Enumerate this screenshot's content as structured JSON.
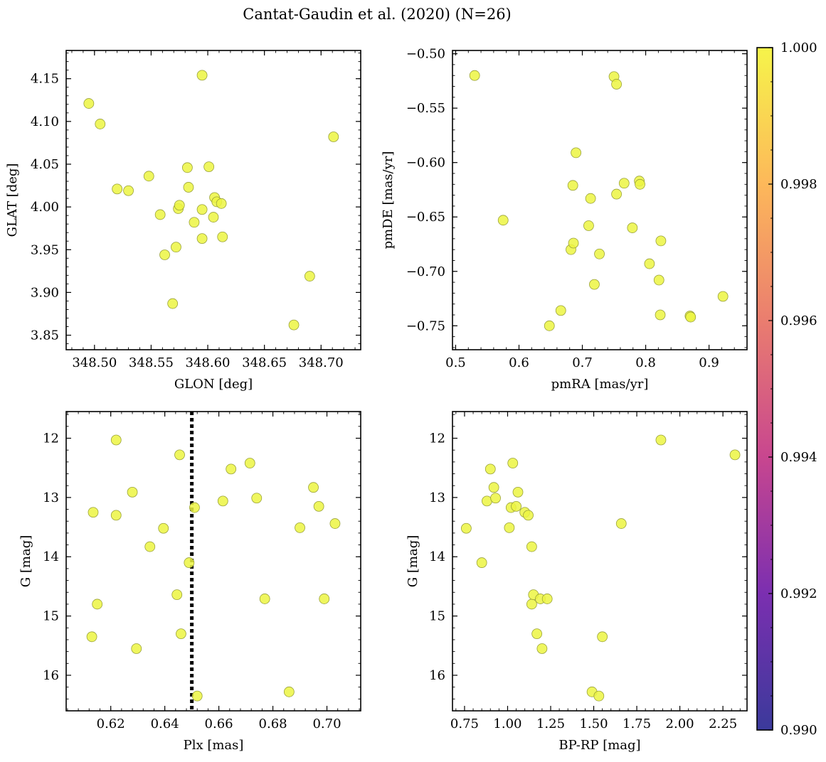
{
  "figure": {
    "title": "Cantat-Gaudin et al. (2020) (N=26)"
  },
  "chart_data": [
    {
      "type": "scatter",
      "xlabel": "GLON [deg]",
      "ylabel": "GLAT [deg]",
      "xlim": [
        348.475,
        348.735
      ],
      "ylim": [
        3.833,
        4.183
      ],
      "xticks": [
        348.5,
        348.55,
        348.6,
        348.65,
        348.7
      ],
      "xtick_labels": [
        "348.50",
        "348.55",
        "348.60",
        "348.65",
        "348.70"
      ],
      "yticks": [
        3.85,
        3.9,
        3.95,
        4.0,
        4.05,
        4.1,
        4.15
      ],
      "ytick_labels": [
        "3.85",
        "3.90",
        "3.95",
        "4.00",
        "4.05",
        "4.10",
        "4.15"
      ],
      "color_value": 1.0,
      "points": [
        {
          "x": 348.495,
          "y": 4.121
        },
        {
          "x": 348.505,
          "y": 4.097
        },
        {
          "x": 348.52,
          "y": 4.021
        },
        {
          "x": 348.53,
          "y": 4.019
        },
        {
          "x": 348.548,
          "y": 4.036
        },
        {
          "x": 348.558,
          "y": 3.991
        },
        {
          "x": 348.562,
          "y": 3.944
        },
        {
          "x": 348.569,
          "y": 3.887
        },
        {
          "x": 348.572,
          "y": 3.953
        },
        {
          "x": 348.574,
          "y": 3.998
        },
        {
          "x": 348.575,
          "y": 4.002
        },
        {
          "x": 348.582,
          "y": 4.046
        },
        {
          "x": 348.583,
          "y": 4.023
        },
        {
          "x": 348.588,
          "y": 3.982
        },
        {
          "x": 348.595,
          "y": 4.154
        },
        {
          "x": 348.595,
          "y": 3.997
        },
        {
          "x": 348.595,
          "y": 3.963
        },
        {
          "x": 348.601,
          "y": 4.047
        },
        {
          "x": 348.605,
          "y": 3.988
        },
        {
          "x": 348.606,
          "y": 4.011
        },
        {
          "x": 348.608,
          "y": 4.006
        },
        {
          "x": 348.612,
          "y": 4.004
        },
        {
          "x": 348.613,
          "y": 3.965
        },
        {
          "x": 348.676,
          "y": 3.862
        },
        {
          "x": 348.69,
          "y": 3.919
        },
        {
          "x": 348.711,
          "y": 4.082
        }
      ]
    },
    {
      "type": "scatter",
      "xlabel": "pmRA [mas/yr]",
      "ylabel": "pmDE [mas/yr]",
      "xlim": [
        0.495,
        0.96
      ],
      "ylim": [
        -0.772,
        -0.497
      ],
      "xticks": [
        0.5,
        0.6,
        0.7,
        0.8,
        0.9
      ],
      "xtick_labels": [
        "0.5",
        "0.6",
        "0.7",
        "0.8",
        "0.9"
      ],
      "yticks": [
        -0.75,
        -0.7,
        -0.65,
        -0.6,
        -0.55,
        -0.5
      ],
      "ytick_labels": [
        "−0.75",
        "−0.70",
        "−0.65",
        "−0.60",
        "−0.55",
        "−0.50"
      ],
      "color_value": 1.0,
      "points": [
        {
          "x": 0.53,
          "y": -0.52
        },
        {
          "x": 0.575,
          "y": -0.653
        },
        {
          "x": 0.648,
          "y": -0.75
        },
        {
          "x": 0.666,
          "y": -0.736
        },
        {
          "x": 0.682,
          "y": -0.68
        },
        {
          "x": 0.685,
          "y": -0.621
        },
        {
          "x": 0.686,
          "y": -0.674
        },
        {
          "x": 0.69,
          "y": -0.591
        },
        {
          "x": 0.71,
          "y": -0.658
        },
        {
          "x": 0.713,
          "y": -0.633
        },
        {
          "x": 0.719,
          "y": -0.712
        },
        {
          "x": 0.727,
          "y": -0.684
        },
        {
          "x": 0.75,
          "y": -0.521
        },
        {
          "x": 0.754,
          "y": -0.528
        },
        {
          "x": 0.754,
          "y": -0.629
        },
        {
          "x": 0.766,
          "y": -0.619
        },
        {
          "x": 0.779,
          "y": -0.66
        },
        {
          "x": 0.79,
          "y": -0.617
        },
        {
          "x": 0.791,
          "y": -0.62
        },
        {
          "x": 0.806,
          "y": -0.693
        },
        {
          "x": 0.821,
          "y": -0.708
        },
        {
          "x": 0.823,
          "y": -0.74
        },
        {
          "x": 0.824,
          "y": -0.672
        },
        {
          "x": 0.87,
          "y": -0.741
        },
        {
          "x": 0.871,
          "y": -0.742
        },
        {
          "x": 0.922,
          "y": -0.723
        }
      ]
    },
    {
      "type": "scatter",
      "xlabel": "Plx [mas]",
      "ylabel": "G [mag]",
      "xlim": [
        0.6035,
        0.7125
      ],
      "ylim": [
        16.6,
        11.55
      ],
      "xticks": [
        0.62,
        0.64,
        0.66,
        0.68,
        0.7
      ],
      "xtick_labels": [
        "0.62",
        "0.64",
        "0.66",
        "0.68",
        "0.70"
      ],
      "yticks": [
        12,
        13,
        14,
        15,
        16
      ],
      "ytick_labels": [
        "12",
        "13",
        "14",
        "15",
        "16"
      ],
      "vline_x": 0.65,
      "color_value": 1.0,
      "points": [
        {
          "x": 0.613,
          "y": 15.35
        },
        {
          "x": 0.6135,
          "y": 13.25
        },
        {
          "x": 0.615,
          "y": 14.8
        },
        {
          "x": 0.622,
          "y": 12.03
        },
        {
          "x": 0.622,
          "y": 13.3
        },
        {
          "x": 0.628,
          "y": 12.91
        },
        {
          "x": 0.6295,
          "y": 15.55
        },
        {
          "x": 0.6345,
          "y": 13.83
        },
        {
          "x": 0.6395,
          "y": 13.52
        },
        {
          "x": 0.6445,
          "y": 14.64
        },
        {
          "x": 0.6455,
          "y": 12.28
        },
        {
          "x": 0.646,
          "y": 15.3
        },
        {
          "x": 0.649,
          "y": 14.1
        },
        {
          "x": 0.651,
          "y": 13.17
        },
        {
          "x": 0.652,
          "y": 16.35
        },
        {
          "x": 0.6615,
          "y": 13.06
        },
        {
          "x": 0.6645,
          "y": 12.52
        },
        {
          "x": 0.6715,
          "y": 12.42
        },
        {
          "x": 0.674,
          "y": 13.01
        },
        {
          "x": 0.677,
          "y": 14.71
        },
        {
          "x": 0.686,
          "y": 16.28
        },
        {
          "x": 0.69,
          "y": 13.51
        },
        {
          "x": 0.695,
          "y": 12.83
        },
        {
          "x": 0.697,
          "y": 13.15
        },
        {
          "x": 0.699,
          "y": 14.71
        },
        {
          "x": 0.703,
          "y": 13.44
        }
      ]
    },
    {
      "type": "scatter",
      "xlabel": "BP-RP [mag]",
      "ylabel": "G [mag]",
      "xlim": [
        0.68,
        2.39
      ],
      "ylim": [
        16.6,
        11.55
      ],
      "xticks": [
        0.75,
        1.0,
        1.25,
        1.5,
        1.75,
        2.0,
        2.25
      ],
      "xtick_labels": [
        "0.75",
        "1.00",
        "1.25",
        "1.50",
        "1.75",
        "2.00",
        "2.25"
      ],
      "yticks": [
        12,
        13,
        14,
        15,
        16
      ],
      "ytick_labels": [
        "12",
        "13",
        "14",
        "15",
        "16"
      ],
      "color_value": 1.0,
      "points": [
        {
          "x": 0.76,
          "y": 13.52
        },
        {
          "x": 0.85,
          "y": 14.1
        },
        {
          "x": 0.88,
          "y": 13.06
        },
        {
          "x": 0.9,
          "y": 12.52
        },
        {
          "x": 0.92,
          "y": 12.83
        },
        {
          "x": 0.93,
          "y": 13.01
        },
        {
          "x": 1.01,
          "y": 13.51
        },
        {
          "x": 1.02,
          "y": 13.17
        },
        {
          "x": 1.03,
          "y": 12.42
        },
        {
          "x": 1.05,
          "y": 13.15
        },
        {
          "x": 1.06,
          "y": 12.91
        },
        {
          "x": 1.1,
          "y": 13.25
        },
        {
          "x": 1.12,
          "y": 13.3
        },
        {
          "x": 1.14,
          "y": 13.83
        },
        {
          "x": 1.14,
          "y": 14.8
        },
        {
          "x": 1.15,
          "y": 14.64
        },
        {
          "x": 1.17,
          "y": 15.3
        },
        {
          "x": 1.19,
          "y": 14.71
        },
        {
          "x": 1.2,
          "y": 15.55
        },
        {
          "x": 1.23,
          "y": 14.71
        },
        {
          "x": 1.49,
          "y": 16.28
        },
        {
          "x": 1.53,
          "y": 16.35
        },
        {
          "x": 1.55,
          "y": 15.35
        },
        {
          "x": 1.66,
          "y": 13.44
        },
        {
          "x": 1.89,
          "y": 12.03
        },
        {
          "x": 2.32,
          "y": 12.28
        }
      ]
    }
  ],
  "colorbar": {
    "range": [
      0.99,
      1.0
    ],
    "ticks": [
      0.99,
      0.992,
      0.994,
      0.996,
      0.998,
      1.0
    ],
    "tick_labels": [
      "0.990",
      "0.992",
      "0.994",
      "0.996",
      "0.998",
      "1.000"
    ],
    "colormap": "plasma",
    "stops": [
      "#3b3a9b",
      "#7b2fb0",
      "#c8468f",
      "#ea7d6f",
      "#fdb85a",
      "#f6f44a"
    ]
  }
}
